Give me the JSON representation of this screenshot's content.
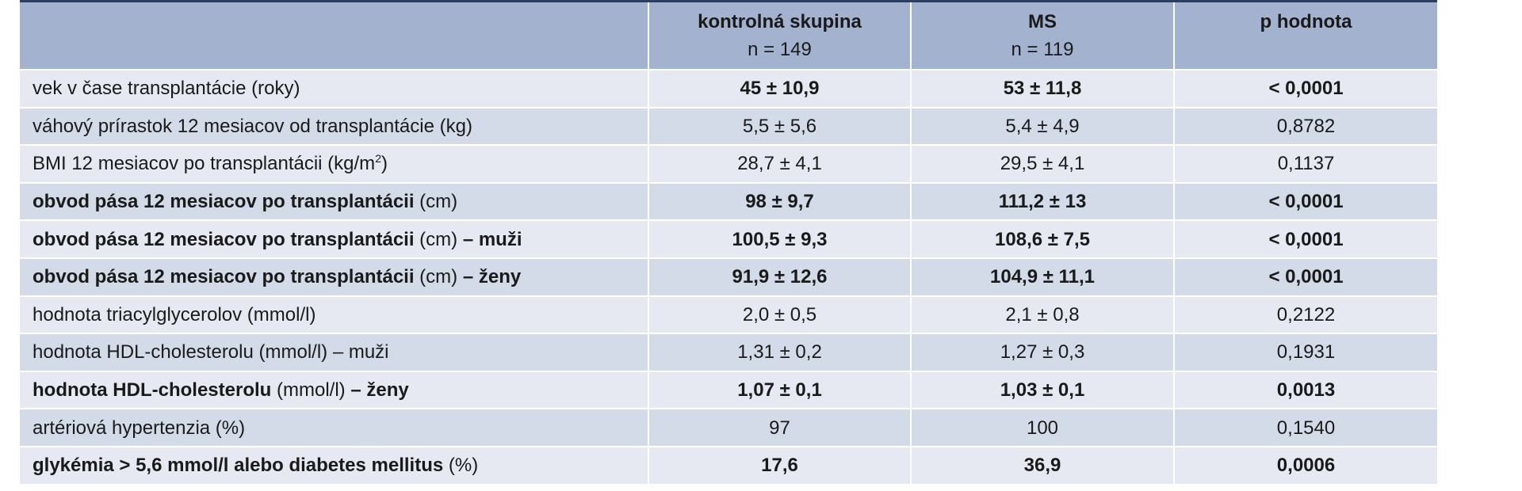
{
  "header": {
    "col0": "",
    "col1_title": "kontrolná skupina",
    "col1_n": "n = 149",
    "col2_title": "MS",
    "col2_n": "n = 119",
    "col3_title": "p hodnota"
  },
  "rows": [
    {
      "main": "vek v čase transplantácie (roky)",
      "unit": "",
      "suffix": "",
      "c1": "45 ± 10,9",
      "c2": "53 ± 11,8",
      "p": "< 0,0001",
      "bold": false,
      "bold_values": true
    },
    {
      "main": "váhový prírastok 12 mesiacov od transplantácie (kg)",
      "unit": "",
      "suffix": "",
      "c1": "5,5 ± 5,6",
      "c2": "5,4 ± 4,9",
      "p": "0,8782",
      "bold": false,
      "bold_values": false
    },
    {
      "main": "BMI 12 mesiacov po transplantácii (kg/m",
      "unit": "2",
      "suffix": ")",
      "c1": "28,7 ± 4,1",
      "c2": "29,5 ± 4,1",
      "p": "0,1137",
      "bold": false,
      "bold_values": false
    },
    {
      "main": "obvod pása 12 mesiacov po transplantácii",
      "unit": " (cm)",
      "suffix": "",
      "c1": "98 ± 9,7",
      "c2": "111,2 ± 13",
      "p": "< 0,0001",
      "bold": true,
      "bold_values": true
    },
    {
      "main": "obvod pása 12 mesiacov po transplantácii",
      "unit": " (cm)",
      "suffix": " – muži",
      "c1": "100,5 ± 9,3",
      "c2": "108,6 ± 7,5",
      "p": "< 0,0001",
      "bold": true,
      "bold_values": true
    },
    {
      "main": "obvod pása 12 mesiacov po transplantácii",
      "unit": " (cm)",
      "suffix": " – ženy",
      "c1": "91,9 ± 12,6",
      "c2": "104,9 ± 11,1",
      "p": "< 0,0001",
      "bold": true,
      "bold_values": true
    },
    {
      "main": "hodnota triacylglycerolov (mmol/l)",
      "unit": "",
      "suffix": "",
      "c1": "2,0 ± 0,5",
      "c2": "2,1 ± 0,8",
      "p": "0,2122",
      "bold": false,
      "bold_values": false
    },
    {
      "main": "hodnota HDL-cholesterolu (mmol/l) – muži",
      "unit": "",
      "suffix": "",
      "c1": "1,31 ± 0,2",
      "c2": "1,27 ± 0,3",
      "p": "0,1931",
      "bold": false,
      "bold_values": false
    },
    {
      "main": "hodnota HDL-cholesterolu",
      "unit": " (mmol/l)",
      "suffix": " – ženy",
      "c1": "1,07 ± 0,1",
      "c2": "1,03 ± 0,1",
      "p": "0,0013",
      "bold": true,
      "bold_values": true
    },
    {
      "main": "artériová hypertenzia (%)",
      "unit": "",
      "suffix": "",
      "c1": "97",
      "c2": "100",
      "p": "0,1540",
      "bold": false,
      "bold_values": false
    },
    {
      "main": "glykémia > 5,6 mmol/l alebo diabetes mellitus",
      "unit": " (%)",
      "suffix": "",
      "c1": "17,6",
      "c2": "36,9",
      "p": "0,0006",
      "bold": true,
      "bold_values": true
    }
  ]
}
